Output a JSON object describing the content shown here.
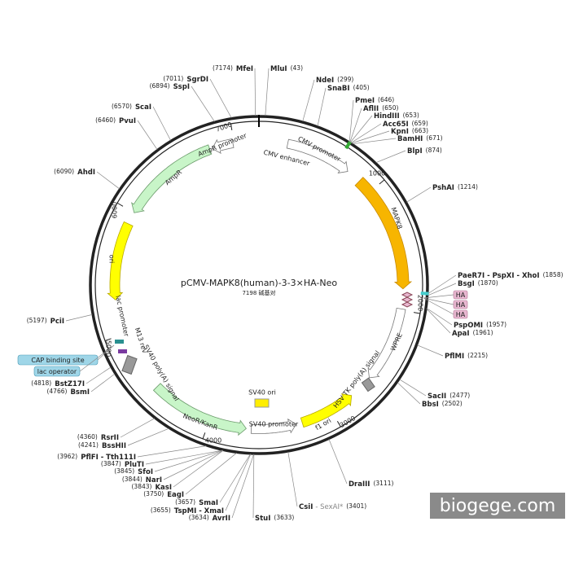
{
  "title": "pCMV-MAPK8(human)-3-3×HA-Neo",
  "subtitle": "7198 碱基对",
  "watermark": "biogege.com",
  "enzymes": [
    {
      "name": "MluI",
      "site": "(43)"
    },
    {
      "name": "NdeI",
      "site": "(299)"
    },
    {
      "name": "SnaBI",
      "site": "(405)"
    },
    {
      "name": "PmeI",
      "site": "(646)"
    },
    {
      "name": "AflII",
      "site": "(650)"
    },
    {
      "name": "HindIII",
      "site": "(653)"
    },
    {
      "name": "Acc65I",
      "site": "(659)"
    },
    {
      "name": "KpnI",
      "site": "(663)"
    },
    {
      "name": "BamHI",
      "site": "(671)"
    },
    {
      "name": "BlpI",
      "site": "(874)"
    },
    {
      "name": "PshAI",
      "site": "(1214)"
    },
    {
      "name": "PaeR7I - PspXI - XhoI",
      "site": "(1858)"
    },
    {
      "name": "BsgI",
      "site": "(1870)"
    },
    {
      "name": "PspOMI",
      "site": "(1957)"
    },
    {
      "name": "ApaI",
      "site": "(1961)"
    },
    {
      "name": "PflMI",
      "site": "(2215)"
    },
    {
      "name": "SacII",
      "site": "(2477)"
    },
    {
      "name": "BbsI",
      "site": "(2502)"
    },
    {
      "name": "DraIII",
      "site": "(3111)"
    },
    {
      "name": "CsiI",
      "alias": "- SexAI*",
      "site": "(3401)"
    },
    {
      "name": "StuI",
      "site": "(3633)"
    },
    {
      "name": "AvrII",
      "site": "(3634)"
    },
    {
      "name": "TspMI - XmaI",
      "site": "(3655)"
    },
    {
      "name": "SmaI",
      "site": "(3657)"
    },
    {
      "name": "EagI",
      "site": "(3750)"
    },
    {
      "name": "KasI",
      "site": "(3843)"
    },
    {
      "name": "NarI",
      "site": "(3844)"
    },
    {
      "name": "SfoI",
      "site": "(3845)"
    },
    {
      "name": "PluTI",
      "site": "(3847)"
    },
    {
      "name": "PflFI - Tth111I",
      "site": "(3962)"
    },
    {
      "name": "BssHII",
      "site": "(4241)"
    },
    {
      "name": "RsrII",
      "site": "(4360)"
    },
    {
      "name": "BsmI",
      "site": "(4766)"
    },
    {
      "name": "BstZ17I",
      "site": "(4818)"
    },
    {
      "name": "PciI",
      "site": "(5197)"
    },
    {
      "name": "AhdI",
      "site": "(6090)"
    },
    {
      "name": "PvuI",
      "site": "(6460)"
    },
    {
      "name": "ScaI",
      "site": "(6570)"
    },
    {
      "name": "SspI",
      "site": "(6894)"
    },
    {
      "name": "SgrDI",
      "site": "(7011)"
    },
    {
      "name": "MfeI",
      "site": "(7174)"
    }
  ],
  "features": [
    "CMV enhancer",
    "CMV promoter",
    "MAPK8",
    "WPRE",
    "HSV TK poly(A) signal",
    "f1 ori",
    "SV40 promoter",
    "SV40 ori",
    "NeoR/KanR",
    "SV40 poly(A) signal",
    "lac promoter",
    "M13 rev",
    "ori",
    "AmpR",
    "AmpR promoter"
  ],
  "tags": [
    "HA",
    "HA",
    "HA"
  ],
  "boxes": [
    "CAP binding site",
    "lac operator"
  ],
  "ticks": [
    "1000",
    "2000",
    "3000",
    "4000",
    "5000",
    "6000",
    "7000"
  ]
}
